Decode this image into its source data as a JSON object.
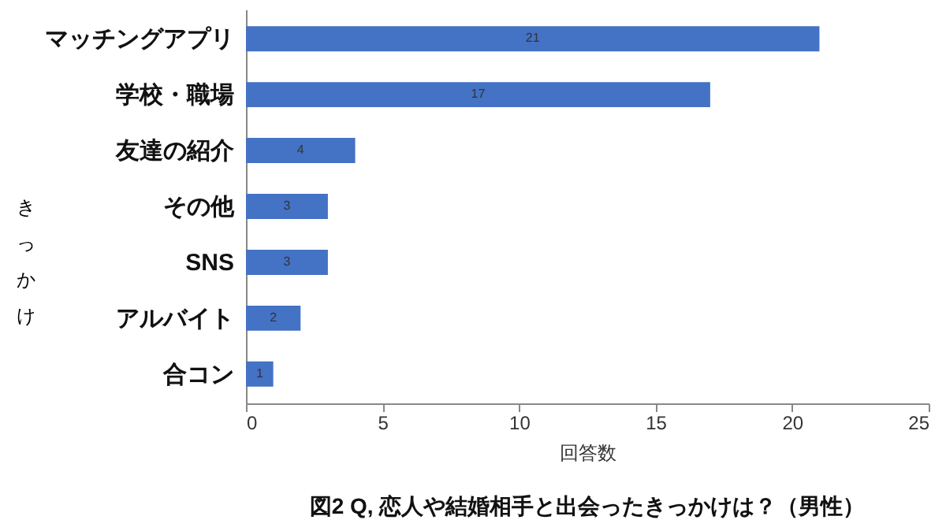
{
  "chart_data": {
    "type": "bar",
    "orientation": "horizontal",
    "title": "図2 Q, 恋人や結婚相手と出会ったきっかけは？（男性）",
    "xlabel": "回答数",
    "ylabel": "きっかけ",
    "categories": [
      "マッチングアプリ",
      "学校・職場",
      "友達の紹介",
      "その他",
      "SNS",
      "アルバイト",
      "合コン"
    ],
    "values": [
      21,
      17,
      4,
      3,
      3,
      2,
      1
    ],
    "color": "#4472c4",
    "xlim": [
      0,
      25
    ],
    "xticks": [
      0,
      5,
      10,
      15,
      20,
      25
    ],
    "data_labels": true,
    "grid": false
  }
}
